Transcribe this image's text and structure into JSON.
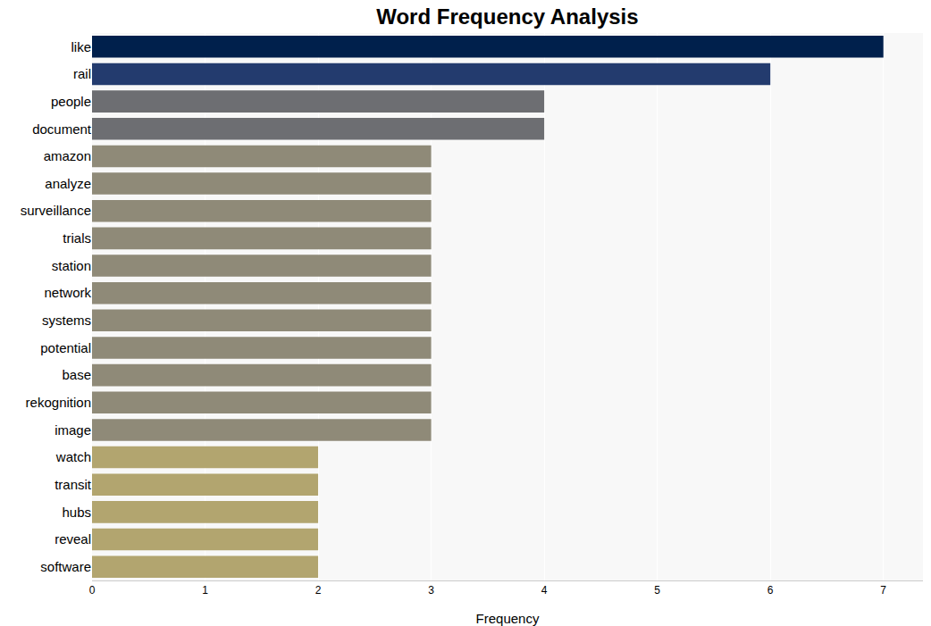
{
  "chart_data": {
    "type": "bar",
    "orientation": "horizontal",
    "title": "Word Frequency Analysis",
    "x_label": "Frequency",
    "categories": [
      "like",
      "rail",
      "people",
      "document",
      "amazon",
      "analyze",
      "surveillance",
      "trials",
      "station",
      "network",
      "systems",
      "potential",
      "base",
      "rekognition",
      "image",
      "watch",
      "transit",
      "hubs",
      "reveal",
      "software"
    ],
    "values": [
      7,
      6,
      4,
      4,
      3,
      3,
      3,
      3,
      3,
      3,
      3,
      3,
      3,
      3,
      3,
      2,
      2,
      2,
      2,
      2
    ],
    "colors": [
      "#00204c",
      "#233b6e",
      "#6d6e72",
      "#6d6e72",
      "#8f8a78",
      "#8f8a78",
      "#8f8a78",
      "#8f8a78",
      "#8f8a78",
      "#8f8a78",
      "#8f8a78",
      "#8f8a78",
      "#8f8a78",
      "#8f8a78",
      "#8f8a78",
      "#b2a56f",
      "#b2a56f",
      "#b2a56f",
      "#b2a56f",
      "#b2a56f"
    ],
    "xlim": [
      0,
      7.35
    ],
    "xticks": [
      0,
      1,
      2,
      3,
      4,
      5,
      6,
      7
    ],
    "grid": true
  }
}
